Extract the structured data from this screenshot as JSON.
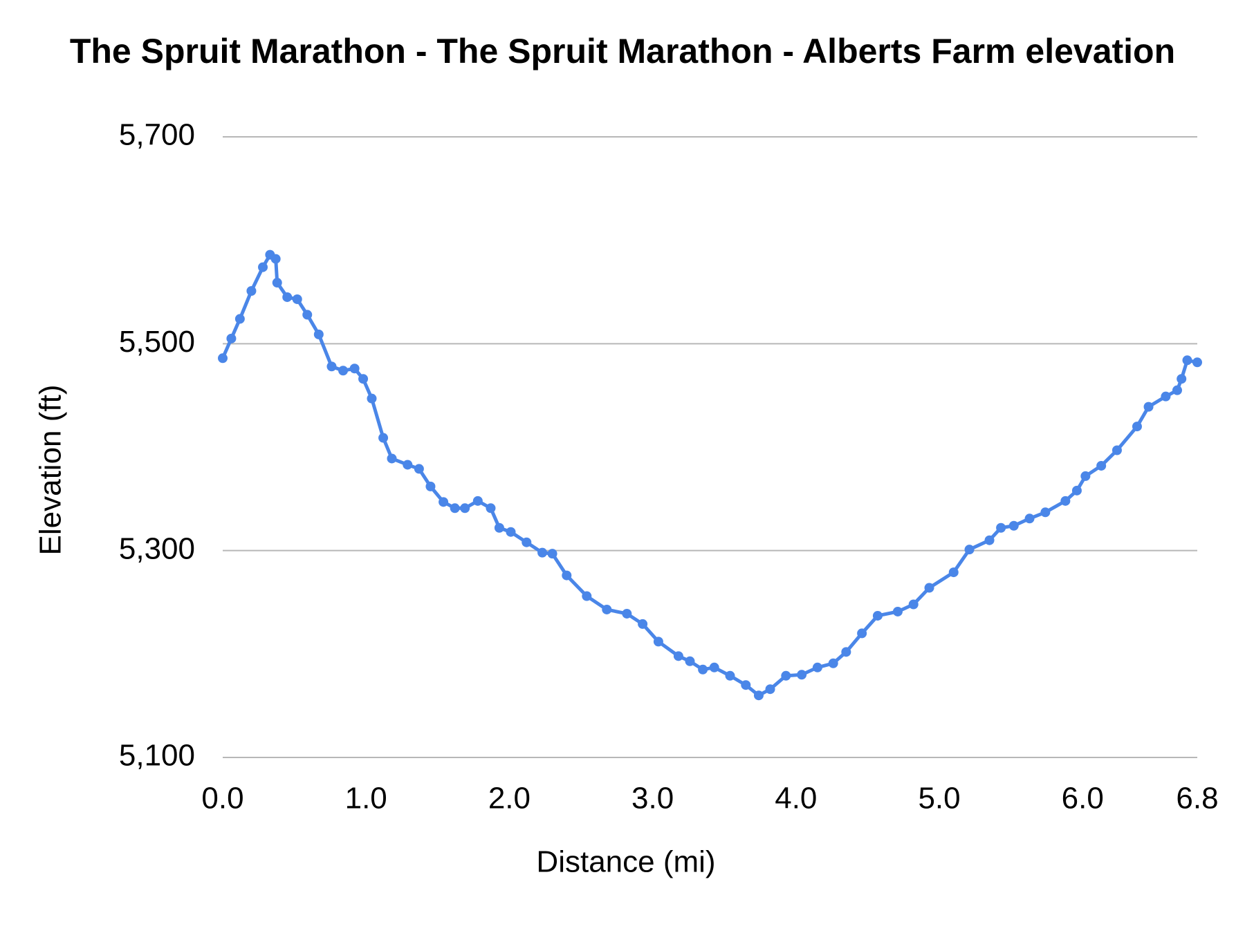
{
  "chart_data": {
    "type": "line",
    "title": "The Spruit Marathon - The Spruit Marathon - Alberts Farm elevation",
    "x_label": "Distance (mi)",
    "y_label": "Elevation (ft)",
    "xlim": [
      0,
      6.8
    ],
    "xticks": [
      {
        "value": 0,
        "label": "0.0"
      },
      {
        "value": 1,
        "label": "1.0"
      },
      {
        "value": 2,
        "label": "2.0"
      },
      {
        "value": 3,
        "label": "3.0"
      },
      {
        "value": 4,
        "label": "4.0"
      },
      {
        "value": 5,
        "label": "5.0"
      },
      {
        "value": 6,
        "label": "6.0"
      },
      {
        "value": 6.8,
        "label": "6.8"
      }
    ],
    "ylim": [
      5100,
      5700
    ],
    "yticks": [
      {
        "value": 5100,
        "label": "5,100"
      },
      {
        "value": 5300,
        "label": "5,300"
      },
      {
        "value": 5500,
        "label": "5,500"
      },
      {
        "value": 5700,
        "label": "5,700"
      }
    ],
    "grid": true,
    "markers": true,
    "x": [
      0,
      0.06,
      0.12,
      0.2,
      0.28,
      0.33,
      0.37,
      0.38,
      0.45,
      0.52,
      0.59,
      0.67,
      0.76,
      0.84,
      0.92,
      0.98,
      1.04,
      1.12,
      1.18,
      1.29,
      1.37,
      1.45,
      1.54,
      1.62,
      1.69,
      1.78,
      1.87,
      1.93,
      2.01,
      2.12,
      2.23,
      2.3,
      2.4,
      2.54,
      2.68,
      2.82,
      2.93,
      3.04,
      3.18,
      3.26,
      3.35,
      3.43,
      3.54,
      3.65,
      3.74,
      3.82,
      3.93,
      4.04,
      4.15,
      4.26,
      4.35,
      4.46,
      4.57,
      4.71,
      4.82,
      4.93,
      5.1,
      5.21,
      5.35,
      5.43,
      5.52,
      5.63,
      5.74,
      5.88,
      5.96,
      6.02,
      6.13,
      6.24,
      6.38,
      6.46,
      6.58,
      6.66,
      6.69,
      6.73,
      6.8
    ],
    "series": [
      {
        "color": "#4a86e8",
        "values": [
          5486,
          5505,
          5524,
          5551,
          5574,
          5586,
          5582,
          5559,
          5545,
          5543,
          5528,
          5509,
          5478,
          5474,
          5476,
          5466,
          5447,
          5409,
          5389,
          5383,
          5379,
          5362,
          5347,
          5341,
          5341,
          5348,
          5341,
          5322,
          5318,
          5308,
          5298,
          5297,
          5276,
          5256,
          5243,
          5239,
          5229,
          5212,
          5198,
          5193,
          5185,
          5187,
          5179,
          5170,
          5160,
          5166,
          5179,
          5180,
          5187,
          5191,
          5202,
          5220,
          5237,
          5241,
          5248,
          5264,
          5279,
          5301,
          5310,
          5322,
          5324,
          5331,
          5337,
          5348,
          5358,
          5372,
          5382,
          5397,
          5420,
          5439,
          5449,
          5455,
          5466,
          5484,
          5482
        ]
      }
    ]
  }
}
